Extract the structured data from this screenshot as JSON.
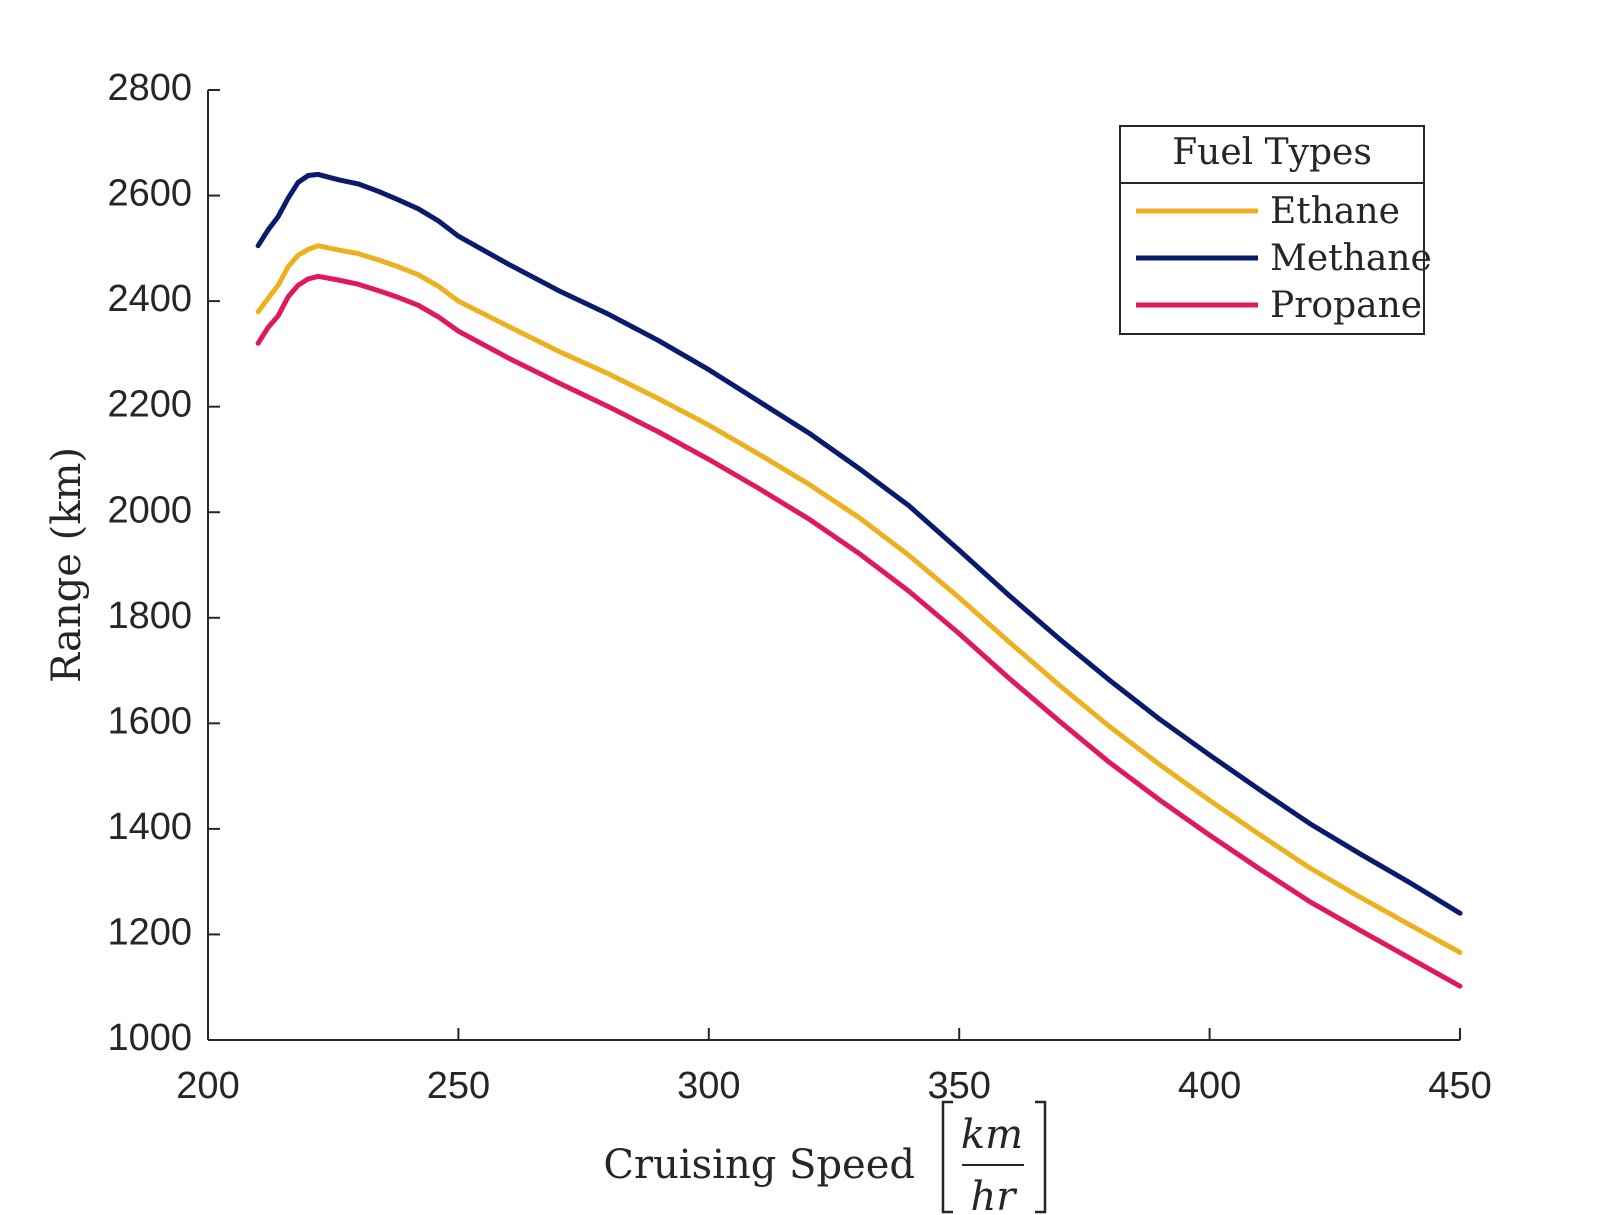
{
  "chart_data": {
    "type": "line",
    "title": "",
    "xlabel": "Cruising Speed",
    "xlabel_unit_numerator": "km",
    "xlabel_unit_denominator": "hr",
    "ylabel": "Range (km)",
    "xlim": [
      200,
      450
    ],
    "ylim": [
      1000,
      2800
    ],
    "xticks": [
      200,
      250,
      300,
      350,
      400,
      450
    ],
    "yticks": [
      1000,
      1200,
      1400,
      1600,
      1800,
      2000,
      2200,
      2400,
      2600,
      2800
    ],
    "grid": false,
    "legend": {
      "title": "Fuel Types",
      "position": "top-right"
    },
    "x": [
      210,
      212,
      214,
      216,
      218,
      220,
      222,
      226,
      230,
      234,
      238,
      242,
      246,
      250,
      260,
      270,
      280,
      290,
      300,
      310,
      320,
      330,
      340,
      350,
      360,
      370,
      380,
      390,
      400,
      410,
      420,
      430,
      440,
      450
    ],
    "series": [
      {
        "name": "Ethane",
        "color": "#EDB120",
        "values": [
          2380,
          2405,
          2430,
          2465,
          2487,
          2498,
          2505,
          2497,
          2490,
          2478,
          2465,
          2450,
          2428,
          2400,
          2352,
          2305,
          2262,
          2215,
          2165,
          2110,
          2053,
          1990,
          1918,
          1838,
          1754,
          1672,
          1594,
          1522,
          1454,
          1389,
          1326,
          1271,
          1218,
          1166
        ]
      },
      {
        "name": "Methane",
        "color": "#0A1A6E",
        "values": [
          2505,
          2535,
          2560,
          2595,
          2625,
          2638,
          2640,
          2630,
          2622,
          2608,
          2592,
          2575,
          2552,
          2523,
          2470,
          2420,
          2375,
          2325,
          2270,
          2210,
          2150,
          2083,
          2012,
          1928,
          1842,
          1760,
          1682,
          1608,
          1540,
          1474,
          1410,
          1353,
          1298,
          1240
        ]
      },
      {
        "name": "Propane",
        "color": "#E01860",
        "values": [
          2320,
          2350,
          2372,
          2408,
          2430,
          2442,
          2447,
          2440,
          2432,
          2420,
          2407,
          2392,
          2370,
          2343,
          2292,
          2245,
          2200,
          2152,
          2100,
          2045,
          1987,
          1922,
          1850,
          1770,
          1685,
          1604,
          1526,
          1455,
          1388,
          1324,
          1262,
          1208,
          1155,
          1102
        ]
      }
    ]
  }
}
